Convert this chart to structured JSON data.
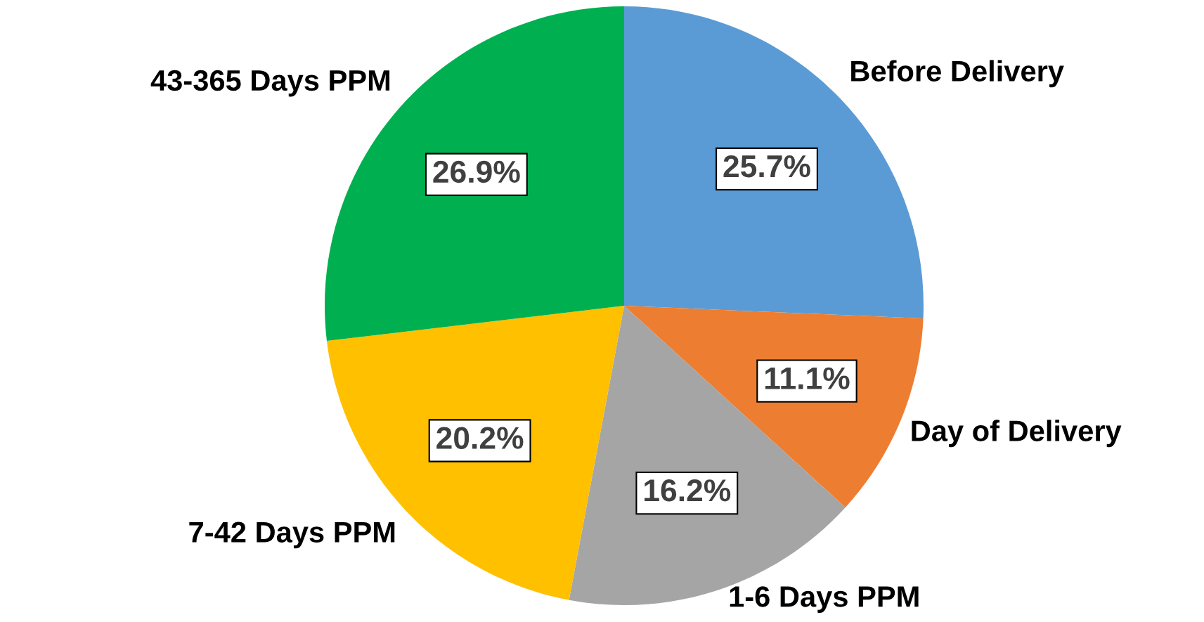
{
  "chart_data": {
    "type": "pie",
    "categories": [
      "Before Delivery",
      "Day of Delivery",
      "1-6 Days PPM",
      "7-42 Days PPM",
      "43-365 Days PPM"
    ],
    "values": [
      25.7,
      11.1,
      16.2,
      20.2,
      26.9
    ],
    "colors": [
      "#5b9bd5",
      "#ed7d31",
      "#a5a5a5",
      "#ffc000",
      "#00b050"
    ],
    "value_labels": [
      "25.7%",
      "11.1%",
      "16.2%",
      "20.2%",
      "26.9%"
    ],
    "legend": false
  }
}
